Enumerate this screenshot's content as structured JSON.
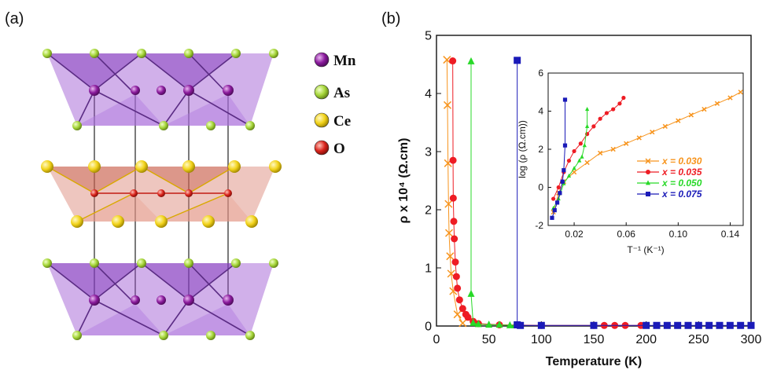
{
  "panel_a": {
    "label": "(a)",
    "legend": [
      {
        "element": "Mn",
        "color": "#8a1a9c"
      },
      {
        "element": "As",
        "color": "#a6d63a"
      },
      {
        "element": "Ce",
        "color": "#f2d31a"
      },
      {
        "element": "O",
        "color": "#d9241c"
      }
    ]
  },
  "panel_b": {
    "label": "(b)"
  },
  "chart_data": [
    {
      "type": "scatter",
      "title": "",
      "xlabel": "Temperature (K)",
      "ylabel": "ρ x 10⁴ (Ω.cm)",
      "xlim": [
        0,
        300
      ],
      "ylim": [
        0,
        5
      ],
      "xticks": [
        0,
        50,
        100,
        150,
        200,
        250,
        300
      ],
      "yticks": [
        0,
        1,
        2,
        3,
        4,
        5
      ],
      "series": [
        {
          "name": "x = 0.030",
          "color": "#f7941d",
          "marker": "x",
          "x": [
            10,
            10.5,
            11,
            11.5,
            12,
            13,
            14,
            16,
            20,
            25
          ],
          "y": [
            4.58,
            3.8,
            2.8,
            2.1,
            1.6,
            1.2,
            0.9,
            0.6,
            0.2,
            0.05
          ]
        },
        {
          "name": "x = 0.035",
          "color": "#ee1c24",
          "marker": "circle",
          "x": [
            15.5,
            15.8,
            16,
            16.5,
            17,
            18,
            19,
            20,
            22,
            25,
            28,
            30,
            35,
            40,
            60,
            100,
            150,
            160,
            170,
            180,
            195
          ],
          "y": [
            4.56,
            2.85,
            2.2,
            1.8,
            1.5,
            1.1,
            0.85,
            0.65,
            0.45,
            0.3,
            0.2,
            0.15,
            0.08,
            0.04,
            0.02,
            0.01,
            0.01,
            0.01,
            0.01,
            0.01,
            0.01
          ]
        },
        {
          "name": "x = 0.050",
          "color": "#28d928",
          "marker": "triangle",
          "x": [
            33,
            33,
            35,
            40,
            50,
            60,
            70,
            75
          ],
          "y": [
            4.55,
            0.55,
            0.05,
            0.03,
            0.02,
            0.02,
            0.01,
            0.01
          ]
        },
        {
          "name": "x = 0.075",
          "color": "#1a1ab8",
          "marker": "square",
          "x": [
            77,
            77,
            80,
            100,
            150,
            200,
            210,
            220,
            230,
            240,
            250,
            260,
            270,
            280,
            290,
            300
          ],
          "y": [
            4.57,
            0.02,
            0.01,
            0.01,
            0.01,
            0.01,
            0.01,
            0.01,
            0.01,
            0.01,
            0.01,
            0.01,
            0.01,
            0.01,
            0.01,
            0.01
          ]
        }
      ]
    },
    {
      "type": "scatter",
      "title": "",
      "xlabel": "T⁻¹ (K⁻¹)",
      "ylabel": "log (ρ (Ω.cm))",
      "xlim": [
        0,
        0.15
      ],
      "ylim": [
        -2,
        6
      ],
      "xticks": [
        0.02,
        0.06,
        0.1,
        0.14
      ],
      "xticklabels": [
        "0.02",
        "0.06",
        "0.10",
        "0.14"
      ],
      "yticks": [
        -2,
        0,
        2,
        4,
        6
      ],
      "legend": "bottom-right",
      "series": [
        {
          "name": "x = 0.030",
          "color": "#f7941d",
          "marker": "x",
          "x": [
            0.004,
            0.008,
            0.012,
            0.02,
            0.03,
            0.04,
            0.05,
            0.06,
            0.07,
            0.08,
            0.09,
            0.1,
            0.11,
            0.12,
            0.13,
            0.14,
            0.148
          ],
          "y": [
            -1.3,
            -0.3,
            0.3,
            0.8,
            1.3,
            1.8,
            2.0,
            2.3,
            2.6,
            2.9,
            3.2,
            3.5,
            3.8,
            4.1,
            4.4,
            4.7,
            5.0
          ]
        },
        {
          "name": "x = 0.035",
          "color": "#ee1c24",
          "marker": "circle",
          "x": [
            0.004,
            0.008,
            0.012,
            0.016,
            0.02,
            0.025,
            0.03,
            0.035,
            0.04,
            0.045,
            0.05,
            0.055,
            0.058
          ],
          "y": [
            -0.6,
            0.0,
            0.8,
            1.4,
            1.9,
            2.3,
            2.8,
            3.2,
            3.6,
            3.9,
            4.1,
            4.4,
            4.7
          ]
        },
        {
          "name": "x = 0.050",
          "color": "#28d928",
          "marker": "triangle",
          "x": [
            0.004,
            0.008,
            0.012,
            0.016,
            0.02,
            0.024,
            0.026,
            0.028,
            0.03,
            0.03
          ],
          "y": [
            -1.1,
            -0.6,
            0.2,
            0.6,
            1.0,
            1.4,
            1.6,
            2.2,
            3.2,
            4.1
          ]
        },
        {
          "name": "x = 0.075",
          "color": "#1a1ab8",
          "marker": "square",
          "x": [
            0.003,
            0.005,
            0.007,
            0.009,
            0.011,
            0.012,
            0.013,
            0.013
          ],
          "y": [
            -1.6,
            -1.2,
            -0.8,
            -0.3,
            0.3,
            0.9,
            2.2,
            4.6
          ]
        }
      ]
    }
  ]
}
